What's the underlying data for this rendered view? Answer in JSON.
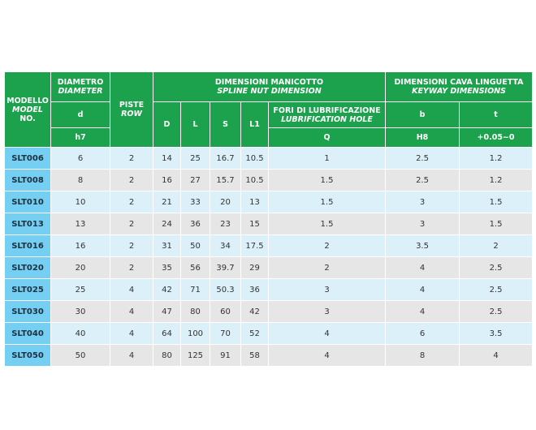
{
  "headers": {
    "model": {
      "it": "MODELLO",
      "en": "MODEL",
      "no": "NO."
    },
    "diameter": {
      "it": "DIAMETRO",
      "en": "DIAMETER",
      "symbol": "d",
      "tolerance": "h7"
    },
    "row": {
      "it": "PISTE",
      "en": "ROW"
    },
    "spline": {
      "it": "DIMENSIONI MANICOTTO",
      "en": "SPLINE NUT DIMENSION",
      "columns": [
        "D",
        "L",
        "S",
        "L1"
      ]
    },
    "lubrication": {
      "it": "FORI DI LUBRIFICAZIONE",
      "en": "LUBRIFICATION HOLE",
      "symbol": "Q"
    },
    "keyway": {
      "it": "DIMENSIONI CAVA LINGUETTA",
      "en": "KEYWAY DIMENSIONS",
      "columns": [
        {
          "symbol": "b",
          "tolerance": "H8"
        },
        {
          "symbol": "t",
          "tolerance": "+0.05~0"
        }
      ]
    }
  },
  "rows": [
    [
      "SLT006",
      6,
      2,
      14,
      25,
      16.7,
      10.5,
      1,
      2.5,
      1.2
    ],
    [
      "SLT008",
      8,
      2,
      16,
      27,
      15.7,
      10.5,
      1.5,
      2.5,
      1.2
    ],
    [
      "SLT010",
      10,
      2,
      21,
      33,
      20,
      13,
      1.5,
      3,
      1.5
    ],
    [
      "SLT013",
      13,
      2,
      24,
      36,
      23,
      15,
      1.5,
      3,
      1.5
    ],
    [
      "SLT016",
      16,
      2,
      31,
      50,
      34,
      17.5,
      2,
      3.5,
      2
    ],
    [
      "SLT020",
      20,
      2,
      35,
      56,
      39.7,
      29,
      2,
      4,
      2.5
    ],
    [
      "SLT025",
      25,
      4,
      42,
      71,
      50.3,
      36,
      3,
      4,
      2.5
    ],
    [
      "SLT030",
      30,
      4,
      47,
      80,
      60,
      42,
      3,
      4,
      2.5
    ],
    [
      "SLT040",
      40,
      4,
      64,
      100,
      70,
      52,
      4,
      6,
      3.5
    ],
    [
      "SLT050",
      50,
      4,
      80,
      125,
      91,
      58,
      4,
      8,
      4
    ]
  ]
}
